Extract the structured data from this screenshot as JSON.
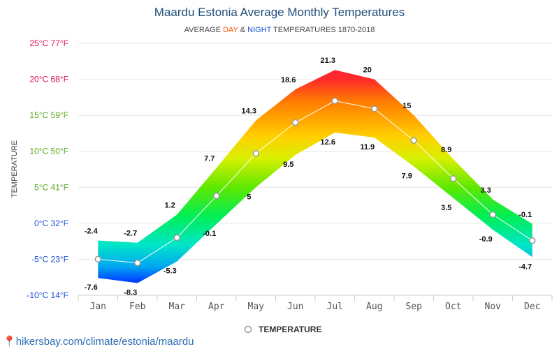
{
  "chart_data": {
    "type": "area",
    "title": "Maardu Estonia Average Monthly Temperatures",
    "subtitle": {
      "prefix": "AVERAGE ",
      "day": "DAY",
      "amp": " & ",
      "night": "NIGHT",
      "suffix": " TEMPERATURES 1870-2018"
    },
    "ylabel": "TEMPERATURE",
    "categories": [
      "Jan",
      "Feb",
      "Mar",
      "Apr",
      "May",
      "Jun",
      "Jul",
      "Aug",
      "Sep",
      "Oct",
      "Nov",
      "Dec"
    ],
    "day_values": [
      -2.4,
      -2.7,
      1.2,
      7.7,
      14.3,
      18.6,
      21.3,
      20,
      15,
      8.9,
      3.3,
      -0.1
    ],
    "night_values": [
      -7.6,
      -8.3,
      -5.3,
      -0.1,
      5,
      9.5,
      12.6,
      11.9,
      7.9,
      3.5,
      -0.9,
      -4.7
    ],
    "day_labels": [
      "-2.4",
      "-2.7",
      "1.2",
      "7.7",
      "14.3",
      "18.6",
      "21.3",
      "20",
      "15",
      "8.9",
      "3.3",
      "-0.1"
    ],
    "night_labels": [
      "-7.6",
      "-8.3",
      "-5.3",
      "-0.1",
      "5",
      "9.5",
      "12.6",
      "11.9",
      "7.9",
      "3.5",
      "-0.9",
      "-4.7"
    ],
    "mean_values": [
      -5,
      -5.5,
      -2,
      3.8,
      9.7,
      14,
      17,
      15.9,
      11.5,
      6.2,
      1.2,
      -2.4
    ],
    "ylim": [
      -10,
      25
    ],
    "yticks": [
      {
        "value": 25,
        "label": "25°C 77°F",
        "color": "#e0105a"
      },
      {
        "value": 20,
        "label": "20°C 68°F",
        "color": "#e0105a"
      },
      {
        "value": 15,
        "label": "15°C 59°F",
        "color": "#5aaa1e"
      },
      {
        "value": 10,
        "label": "10°C 50°F",
        "color": "#5aaa1e"
      },
      {
        "value": 5,
        "label": "5°C 41°F",
        "color": "#5aaa1e"
      },
      {
        "value": 0,
        "label": "0°C 32°F",
        "color": "#1b4fd6"
      },
      {
        "value": -5,
        "label": "-5°C 23°F",
        "color": "#1b4fd6"
      },
      {
        "value": -10,
        "label": "-10°C 14°F",
        "color": "#1b4fd6"
      }
    ],
    "grid": true,
    "legend": {
      "label": "TEMPERATURE",
      "position": "bottom"
    },
    "colors": {
      "title": "#1f4e79",
      "day": "#ff5500",
      "night": "#1b4fd6",
      "grid": "#e6e6e6",
      "line": "#ffffff",
      "marker_stroke": "#9a9a9a"
    },
    "gradient_stops": [
      {
        "value": 25,
        "color": "#ff1a5a"
      },
      {
        "value": 20,
        "color": "#ff2a2a"
      },
      {
        "value": 17,
        "color": "#ff7a00"
      },
      {
        "value": 12,
        "color": "#ffd000"
      },
      {
        "value": 9,
        "color": "#d8f000"
      },
      {
        "value": 5,
        "color": "#5fe800"
      },
      {
        "value": 1,
        "color": "#00ee55"
      },
      {
        "value": -3,
        "color": "#00e6c8"
      },
      {
        "value": -6,
        "color": "#00a8f0"
      },
      {
        "value": -8,
        "color": "#0044ff"
      },
      {
        "value": -10,
        "color": "#0022dd"
      }
    ]
  },
  "footer": {
    "url": "hikersbay.com/climate/estonia/maardu"
  }
}
